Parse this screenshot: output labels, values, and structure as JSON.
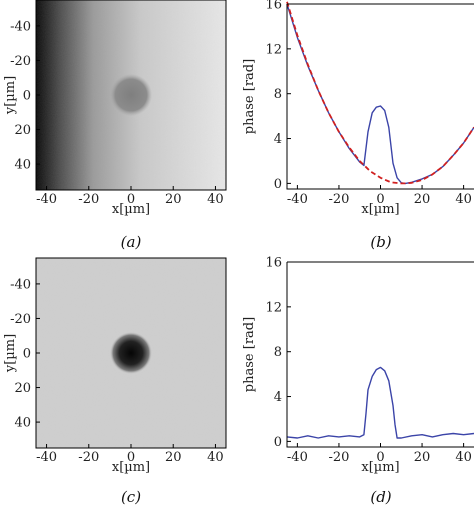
{
  "chart_data": [
    {
      "panel": "a",
      "caption": "(a)",
      "type": "heatmap",
      "xlabel": "x[µm]",
      "ylabel": "y[µm]",
      "xticks": [
        "-40",
        "-20",
        "0",
        "20",
        "40"
      ],
      "yticks": [
        "-40",
        "-20",
        "0",
        "20",
        "40"
      ],
      "xlim": [
        -45,
        45
      ],
      "ylim": [
        -55,
        55
      ],
      "y_direction": "down",
      "colormap": "gray",
      "description_values": {
        "background_gradient": "dark at left, light at right",
        "spot_center": [
          0,
          0
        ],
        "spot_radius_um": 10
      }
    },
    {
      "panel": "b",
      "caption": "(b)",
      "type": "line",
      "xlabel": "x[µm]",
      "ylabel": "phase [rad]",
      "xticks": [
        "-40",
        "-20",
        "0",
        "20",
        "40"
      ],
      "yticks": [
        "0",
        "4",
        "8",
        "12",
        "16"
      ],
      "xlim": [
        -45,
        45
      ],
      "ylim": [
        -0.5,
        16
      ],
      "series": [
        {
          "style": "solid",
          "color": "#3b44a8",
          "x": [
            -45,
            -40,
            -35,
            -30,
            -25,
            -20,
            -15,
            -10,
            -8,
            -6,
            -4,
            -2,
            0,
            2,
            4,
            6,
            8,
            10,
            12,
            15,
            20,
            25,
            30,
            35,
            40,
            45
          ],
          "y": [
            16.0,
            13.0,
            10.5,
            8.3,
            6.3,
            4.6,
            3.1,
            1.9,
            1.6,
            4.6,
            6.3,
            6.8,
            6.9,
            6.5,
            5.0,
            1.8,
            0.5,
            0.05,
            0.0,
            0.1,
            0.4,
            0.8,
            1.5,
            2.5,
            3.6,
            5.0
          ]
        },
        {
          "style": "dashed",
          "color": "#d02020",
          "x": [
            -45,
            -40,
            -35,
            -30,
            -25,
            -20,
            -15,
            -10,
            -5,
            0,
            5,
            10,
            12,
            15,
            20,
            25,
            30,
            35,
            40,
            45
          ],
          "y": [
            16.2,
            13.2,
            10.6,
            8.3,
            6.3,
            4.6,
            3.2,
            2.0,
            1.1,
            0.5,
            0.1,
            0.0,
            0.0,
            0.05,
            0.3,
            0.8,
            1.5,
            2.5,
            3.6,
            5.0
          ]
        }
      ]
    },
    {
      "panel": "c",
      "caption": "(c)",
      "type": "heatmap",
      "xlabel": "x[µm]",
      "ylabel": "y[µm]",
      "xticks": [
        "-40",
        "-20",
        "0",
        "20",
        "40"
      ],
      "yticks": [
        "-40",
        "-20",
        "0",
        "20",
        "40"
      ],
      "xlim": [
        -45,
        45
      ],
      "ylim": [
        -55,
        55
      ],
      "y_direction": "down",
      "colormap": "gray",
      "description_values": {
        "background": "uniform light gray",
        "spot_center": [
          0,
          0
        ],
        "spot_radius_um": 10
      }
    },
    {
      "panel": "d",
      "caption": "(d)",
      "type": "line",
      "xlabel": "x[µm]",
      "ylabel": "phase [rad]",
      "xticks": [
        "-40",
        "-20",
        "0",
        "20",
        "40"
      ],
      "yticks": [
        "0",
        "4",
        "8",
        "12",
        "16"
      ],
      "xlim": [
        -45,
        45
      ],
      "ylim": [
        -0.5,
        16
      ],
      "series": [
        {
          "style": "solid",
          "color": "#3b44a8",
          "x": [
            -45,
            -40,
            -35,
            -30,
            -25,
            -20,
            -15,
            -10,
            -8,
            -7,
            -6,
            -4,
            -2,
            0,
            2,
            4,
            6,
            7,
            8,
            10,
            15,
            20,
            25,
            30,
            35,
            40,
            45
          ],
          "y": [
            0.4,
            0.3,
            0.5,
            0.3,
            0.5,
            0.4,
            0.5,
            0.4,
            0.6,
            2.5,
            4.6,
            5.8,
            6.4,
            6.6,
            6.3,
            5.4,
            3.2,
            1.5,
            0.3,
            0.3,
            0.5,
            0.6,
            0.4,
            0.6,
            0.7,
            0.6,
            0.7
          ]
        }
      ]
    }
  ]
}
